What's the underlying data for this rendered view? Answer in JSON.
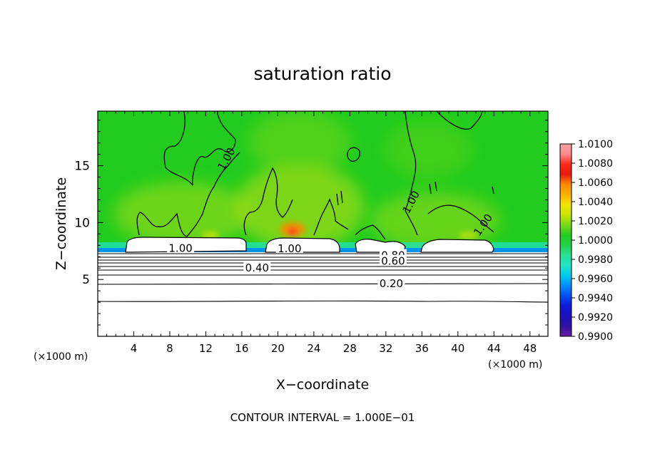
{
  "chart_data": {
    "type": "heatmap",
    "title": "saturation ratio",
    "xlabel": "X−coordinate",
    "ylabel": "Z−coordinate",
    "x_unit_left": "(×1000 m)",
    "x_unit_right": "(×1000 m)",
    "footer": "CONTOUR INTERVAL = 1.000E−01",
    "xlim": [
      0,
      50
    ],
    "ylim": [
      0,
      19.8
    ],
    "x_ticks": [
      4,
      8,
      12,
      16,
      20,
      24,
      28,
      32,
      36,
      40,
      44,
      48
    ],
    "y_ticks": [
      5,
      10,
      15
    ],
    "colorbar": {
      "labels": [
        "1.0100",
        "1.0080",
        "1.0060",
        "1.0040",
        "1.0020",
        "1.0000",
        "0.9980",
        "0.9960",
        "0.9940",
        "0.9920",
        "0.9900"
      ],
      "min": 0.99,
      "max": 1.01,
      "colors": [
        "#f4a3a3",
        "#ff8a8a",
        "#ff2a1a",
        "#e81a10",
        "#ff8a00",
        "#ffb000",
        "#f2e600",
        "#c8e600",
        "#7cd81a",
        "#22cc1e",
        "#1fd24a",
        "#2adf96",
        "#20e6c8",
        "#00c8f0",
        "#008cff",
        "#0050f0",
        "#1018d8",
        "#1a10b8",
        "#3010a0",
        "#6a1aa8"
      ]
    },
    "contour_labels": [
      {
        "text": "1.00",
        "x": 14.3,
        "z": 15.6,
        "angle": -60
      },
      {
        "text": "1.00",
        "x": 34.8,
        "z": 11.8,
        "angle": -62
      },
      {
        "text": "1.00",
        "x": 42.8,
        "z": 9.8,
        "angle": -55
      },
      {
        "text": "1.00",
        "x": 9.2,
        "z": 7.75,
        "angle": 0
      },
      {
        "text": "1.00",
        "x": 21.3,
        "z": 7.7,
        "angle": 0
      },
      {
        "text": "0.80",
        "x": 32.8,
        "z": 7.1,
        "angle": 0
      },
      {
        "text": "0.60",
        "x": 32.8,
        "z": 6.6,
        "angle": 0
      },
      {
        "text": "0.40",
        "x": 17.7,
        "z": 6.0,
        "angle": 0
      },
      {
        "text": "0.20",
        "x": 32.6,
        "z": 4.65,
        "angle": 0
      }
    ],
    "contour_levels_below": [
      0.9,
      0.8,
      0.7,
      0.6,
      0.5,
      0.4,
      0.3,
      0.2,
      0.1
    ],
    "contour_level_z": [
      7.45,
      7.15,
      6.9,
      6.65,
      6.35,
      6.0,
      5.55,
      4.7,
      3.1
    ],
    "saturated_regions": [
      {
        "x0": 3.2,
        "x1": 16.4
      },
      {
        "x0": 19.2,
        "x1": 27.4
      },
      {
        "x0": 27.8,
        "x1": 34.2
      },
      {
        "x0": 36.5,
        "x1": 44.7
      }
    ]
  }
}
